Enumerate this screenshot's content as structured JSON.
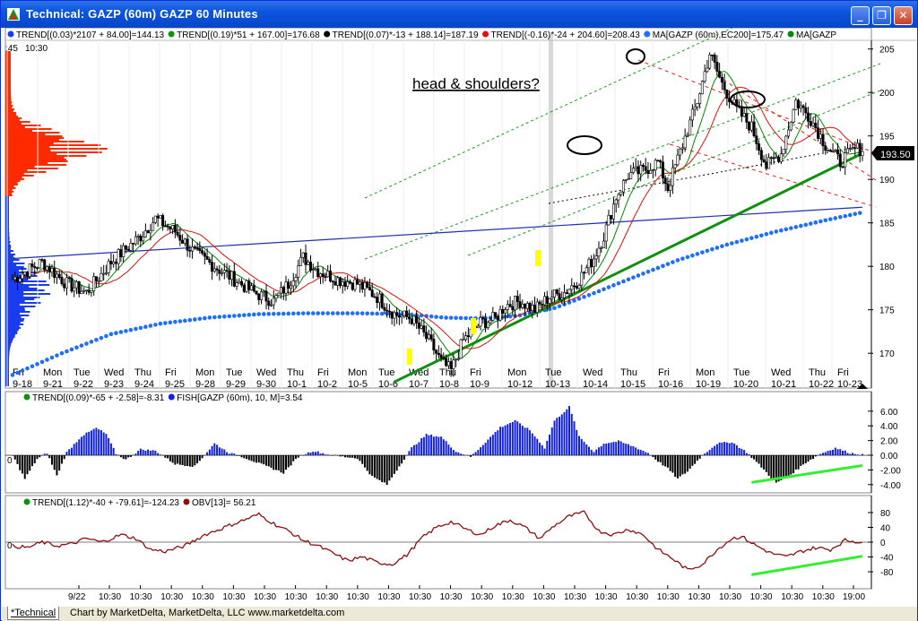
{
  "window": {
    "title": "Technical: GAZP (60m) GAZP 60 Minutes",
    "buttons": [
      "minimize",
      "maximize",
      "close"
    ]
  },
  "status_bar": {
    "tab_label": "*Technical",
    "credit": "Chart by MarketDelta, MarketDelta, LLC www.marketdelta.com"
  },
  "colors": {
    "candle": "#000000",
    "volume_profile_red": "#ff2a00",
    "volume_profile_blue": "#1a3cf0",
    "ma_red": "#e01010",
    "ma_green": "#008a00",
    "ema200_blue": "#1e6eff",
    "trend_blue": "#2030b0",
    "uptrend_green": "#109010",
    "fish_bar": "#1020e0",
    "obv_line": "#8b1010",
    "highlight_yellow": "#ffff00",
    "annotation_green": "#30f030"
  },
  "chart_data": [
    {
      "type": "candlestick",
      "panel": "price",
      "legend": [
        {
          "text": "TREND[(0.03)*2107 + 84.00]=144.13",
          "color": "#1a3cf0"
        },
        {
          "text": "TREND[(0.19)*51 + 167.00]=176.68",
          "color": "#109010"
        },
        {
          "text": "TREND[(0.07)*-13 + 188.14]=187.19",
          "color": "#000000"
        },
        {
          "text": "TREND[(-0.16)*-24 + 204.60]=208.43",
          "color": "#e01010"
        },
        {
          "text": "MA[GAZP (60m),EC200]=175.47",
          "color": "#1e6eff"
        },
        {
          "text": "MA[GAZP",
          "color": "#008a00"
        }
      ],
      "top_left_labels": [
        ":45",
        "10:30"
      ],
      "annotation": "head & shoulders?",
      "last_price": "193.50",
      "ylim": [
        166,
        206
      ],
      "y_ticks": [
        170,
        175,
        180,
        185,
        190,
        195,
        200,
        205
      ],
      "x_day_labels": [
        {
          "day": "Fri",
          "date": "9-18"
        },
        {
          "day": "Mon",
          "date": "9-21"
        },
        {
          "day": "Tue",
          "date": "9-22"
        },
        {
          "day": "Wed",
          "date": "9-23"
        },
        {
          "day": "Thu",
          "date": "9-24"
        },
        {
          "day": "Fri",
          "date": "9-25"
        },
        {
          "day": "Mon",
          "date": "9-28"
        },
        {
          "day": "Tue",
          "date": "9-29"
        },
        {
          "day": "Wed",
          "date": "9-30"
        },
        {
          "day": "Thu",
          "date": "10-1"
        },
        {
          "day": "Fri",
          "date": "10-2"
        },
        {
          "day": "Mon",
          "date": "10-5"
        },
        {
          "day": "Tue",
          "date": "10-6"
        },
        {
          "day": "Wed",
          "date": "10-7"
        },
        {
          "day": "Thu",
          "date": "10-8"
        },
        {
          "day": "Fri",
          "date": "10-9"
        },
        {
          "day": "Mon",
          "date": "10-12"
        },
        {
          "day": "Tue",
          "date": "10-13"
        },
        {
          "day": "Wed",
          "date": "10-14"
        },
        {
          "day": "Thu",
          "date": "10-15"
        },
        {
          "day": "Fri",
          "date": "10-16"
        },
        {
          "day": "Mon",
          "date": "10-19"
        },
        {
          "day": "Tue",
          "date": "10-20"
        },
        {
          "day": "Wed",
          "date": "10-21"
        },
        {
          "day": "Thu",
          "date": "10-22"
        },
        {
          "day": "Fri",
          "date": "10-23"
        }
      ],
      "bar_count": 270,
      "close_path": [
        [
          0,
          178.5
        ],
        [
          12,
          180.5
        ],
        [
          22,
          178.0
        ],
        [
          30,
          177.0
        ],
        [
          40,
          180.5
        ],
        [
          52,
          183.5
        ],
        [
          58,
          185.5
        ],
        [
          66,
          184.0
        ],
        [
          74,
          181.5
        ],
        [
          82,
          180.0
        ],
        [
          90,
          178.5
        ],
        [
          98,
          177.0
        ],
        [
          106,
          176.0
        ],
        [
          112,
          178.0
        ],
        [
          118,
          181.0
        ],
        [
          124,
          179.5
        ],
        [
          132,
          178.5
        ],
        [
          140,
          178.0
        ],
        [
          148,
          176.5
        ],
        [
          155,
          174.5
        ],
        [
          162,
          174.0
        ],
        [
          170,
          171.0
        ],
        [
          174,
          169.0
        ],
        [
          178,
          168.0
        ],
        [
          183,
          171.5
        ],
        [
          190,
          173.5
        ],
        [
          196,
          174.0
        ],
        [
          200,
          175.5
        ],
        [
          206,
          176.0
        ],
        [
          212,
          175.0
        ],
        [
          218,
          176.5
        ],
        [
          224,
          177.0
        ],
        [
          230,
          178.5
        ],
        [
          236,
          181.0
        ],
        [
          240,
          183.5
        ],
        [
          245,
          188.0
        ],
        [
          250,
          190.5
        ],
        [
          256,
          191.0
        ],
        [
          262,
          192.0
        ],
        [
          266,
          189.0
        ]
      ],
      "ema200": [
        [
          0,
          167.5
        ],
        [
          20,
          170.0
        ],
        [
          40,
          172.2
        ],
        [
          60,
          173.4
        ],
        [
          80,
          174.1
        ],
        [
          100,
          174.5
        ],
        [
          120,
          174.6
        ],
        [
          140,
          174.6
        ],
        [
          160,
          174.5
        ],
        [
          175,
          174.1
        ],
        [
          190,
          174.0
        ],
        [
          205,
          174.3
        ],
        [
          220,
          175.2
        ],
        [
          235,
          176.8
        ],
        [
          250,
          178.5
        ],
        [
          270,
          180.7
        ],
        [
          290,
          182.5
        ],
        [
          310,
          184.0
        ],
        [
          330,
          185.3
        ],
        [
          345,
          186.2
        ]
      ],
      "trendlines": [
        {
          "name": "blue-trend",
          "points": [
            [
              0,
              180.9
            ],
            [
              345,
              186.8
            ]
          ]
        },
        {
          "name": "green-uptrend",
          "points": [
            [
              155,
              166.7
            ],
            [
              345,
              193.0
            ]
          ]
        }
      ],
      "highlights": [
        "yellow-bar-10-5",
        "yellow-bar-10-7",
        "yellow-bar-10-9"
      ]
    },
    {
      "type": "bar",
      "panel": "fisher",
      "legend": [
        {
          "text": "TREND[(0.09)*-65 + -2.58]=-8.31",
          "color": "#109010"
        },
        {
          "text": "FISH[GAZP (60m), 10, M]=3.54",
          "color": "#1020e0"
        }
      ],
      "zero_label": "0",
      "ylim": [
        -5,
        7.2
      ],
      "y_ticks": [
        "6.00",
        "4.00",
        "2.00",
        "0.00",
        "-2.00",
        "-4.00"
      ],
      "waves": [
        [
          0,
          0
        ],
        [
          5,
          -3.2
        ],
        [
          10,
          -0.5
        ],
        [
          14,
          0.3
        ],
        [
          18,
          -2.8
        ],
        [
          22,
          0.4
        ],
        [
          28,
          2.6
        ],
        [
          34,
          3.7
        ],
        [
          38,
          2.9
        ],
        [
          42,
          0.2
        ],
        [
          46,
          -0.6
        ],
        [
          52,
          0.8
        ],
        [
          58,
          0.6
        ],
        [
          66,
          -1.2
        ],
        [
          74,
          -1.5
        ],
        [
          82,
          1.6
        ],
        [
          88,
          0.3
        ],
        [
          94,
          -0.3
        ],
        [
          100,
          -1.1
        ],
        [
          110,
          -2.4
        ],
        [
          116,
          -0.2
        ],
        [
          122,
          0.6
        ],
        [
          128,
          0.1
        ],
        [
          134,
          -0.2
        ],
        [
          140,
          -0.4
        ],
        [
          146,
          -2.9
        ],
        [
          152,
          -4.0
        ],
        [
          158,
          -1.0
        ],
        [
          162,
          1.0
        ],
        [
          168,
          2.8
        ],
        [
          174,
          2.5
        ],
        [
          180,
          0.5
        ],
        [
          186,
          -0.2
        ],
        [
          192,
          1.8
        ],
        [
          198,
          3.8
        ],
        [
          204,
          4.7
        ],
        [
          210,
          3.4
        ],
        [
          216,
          1.0
        ],
        [
          220,
          4.7
        ],
        [
          226,
          6.6
        ],
        [
          230,
          2.5
        ],
        [
          236,
          0.5
        ],
        [
          240,
          1.6
        ],
        [
          246,
          1.9
        ],
        [
          252,
          1.2
        ],
        [
          258,
          0.3
        ],
        [
          262,
          -0.8
        ],
        [
          266,
          -1.8
        ],
        [
          270,
          -3.2
        ],
        [
          274,
          -2.2
        ],
        [
          280,
          0.0
        ],
        [
          286,
          1.6
        ],
        [
          292,
          1.8
        ],
        [
          298,
          0.4
        ],
        [
          304,
          -1.6
        ],
        [
          310,
          -3.8
        ],
        [
          316,
          -2.6
        ],
        [
          322,
          -1.0
        ],
        [
          328,
          0.2
        ],
        [
          334,
          1.0
        ],
        [
          340,
          0.3
        ],
        [
          345,
          0.1
        ]
      ],
      "annotation_line": [
        [
          300,
          -3.7
        ],
        [
          345,
          -1.4
        ]
      ]
    },
    {
      "type": "line",
      "panel": "obv",
      "legend": [
        {
          "text": "TREND[(1.12)*-40 + -79.61]=-124.23",
          "color": "#109010"
        },
        {
          "text": "OBV[13]=   56.21",
          "color": "#8b1010"
        }
      ],
      "zero_label": "0",
      "ylim": [
        -92,
        92
      ],
      "y_ticks": [
        "80",
        "40",
        "0",
        "-40",
        "-80"
      ],
      "x_time_labels": [
        "9/22",
        "10:30",
        "10:30",
        "10:30",
        "10:30",
        "10:30",
        "10:30",
        "10:30",
        "10:30",
        "10:30",
        "10:30",
        "10:30",
        "10:30",
        "10:30",
        "10:30",
        "10:30",
        "10:30",
        "10:30",
        "10:30",
        "10:30",
        "10:30",
        "10:30",
        "10:30",
        "10:30",
        "10:30",
        "19:00"
      ],
      "series": [
        [
          0,
          -10
        ],
        [
          6,
          -15
        ],
        [
          12,
          0
        ],
        [
          18,
          -10
        ],
        [
          24,
          -5
        ],
        [
          30,
          10
        ],
        [
          36,
          0
        ],
        [
          44,
          20
        ],
        [
          50,
          10
        ],
        [
          56,
          -20
        ],
        [
          62,
          -25
        ],
        [
          70,
          -10
        ],
        [
          78,
          20
        ],
        [
          86,
          40
        ],
        [
          94,
          60
        ],
        [
          100,
          75
        ],
        [
          106,
          50
        ],
        [
          112,
          30
        ],
        [
          118,
          5
        ],
        [
          124,
          -10
        ],
        [
          130,
          -30
        ],
        [
          136,
          -50
        ],
        [
          142,
          -40
        ],
        [
          148,
          -55
        ],
        [
          154,
          -60
        ],
        [
          160,
          -35
        ],
        [
          166,
          10
        ],
        [
          172,
          40
        ],
        [
          178,
          55
        ],
        [
          184,
          35
        ],
        [
          190,
          20
        ],
        [
          196,
          45
        ],
        [
          202,
          60
        ],
        [
          208,
          40
        ],
        [
          214,
          10
        ],
        [
          220,
          45
        ],
        [
          226,
          70
        ],
        [
          232,
          80
        ],
        [
          238,
          30
        ],
        [
          244,
          20
        ],
        [
          250,
          35
        ],
        [
          256,
          20
        ],
        [
          262,
          -20
        ],
        [
          268,
          -45
        ],
        [
          274,
          -75
        ],
        [
          280,
          -60
        ],
        [
          286,
          -20
        ],
        [
          292,
          10
        ],
        [
          296,
          15
        ],
        [
          302,
          -10
        ],
        [
          308,
          -30
        ],
        [
          314,
          -40
        ],
        [
          320,
          -25
        ],
        [
          326,
          -15
        ],
        [
          332,
          -20
        ],
        [
          338,
          5
        ],
        [
          345,
          0
        ]
      ],
      "annotation_line": [
        [
          300,
          -88
        ],
        [
          345,
          -38
        ]
      ]
    }
  ]
}
